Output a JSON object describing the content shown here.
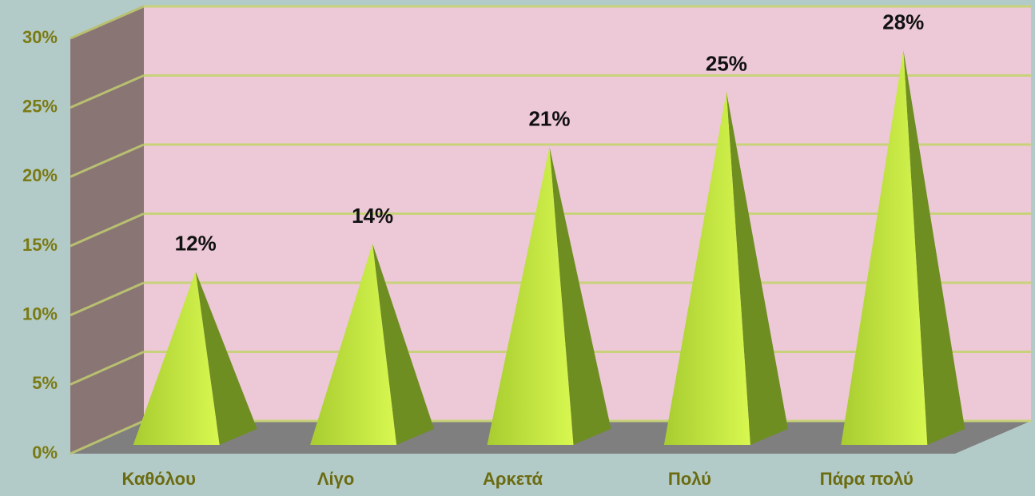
{
  "chart_data": {
    "type": "pyramid3d",
    "categories": [
      "Καθόλου",
      "Λίγο",
      "Αρκετά",
      "Πολύ",
      "Πάρα πολύ"
    ],
    "values": [
      12,
      14,
      21,
      25,
      28
    ],
    "value_labels": [
      "12%",
      "14%",
      "21%",
      "25%",
      "28%"
    ],
    "color": "#b8e03a",
    "ylim": [
      0,
      30
    ],
    "yticks": [
      {
        "value": 0,
        "label": "0%"
      },
      {
        "value": 5,
        "label": "5%"
      },
      {
        "value": 10,
        "label": "10%"
      },
      {
        "value": 15,
        "label": "15%"
      },
      {
        "value": 20,
        "label": "20%"
      },
      {
        "value": 25,
        "label": "25%"
      },
      {
        "value": 30,
        "label": "30%"
      }
    ],
    "grid": true
  }
}
